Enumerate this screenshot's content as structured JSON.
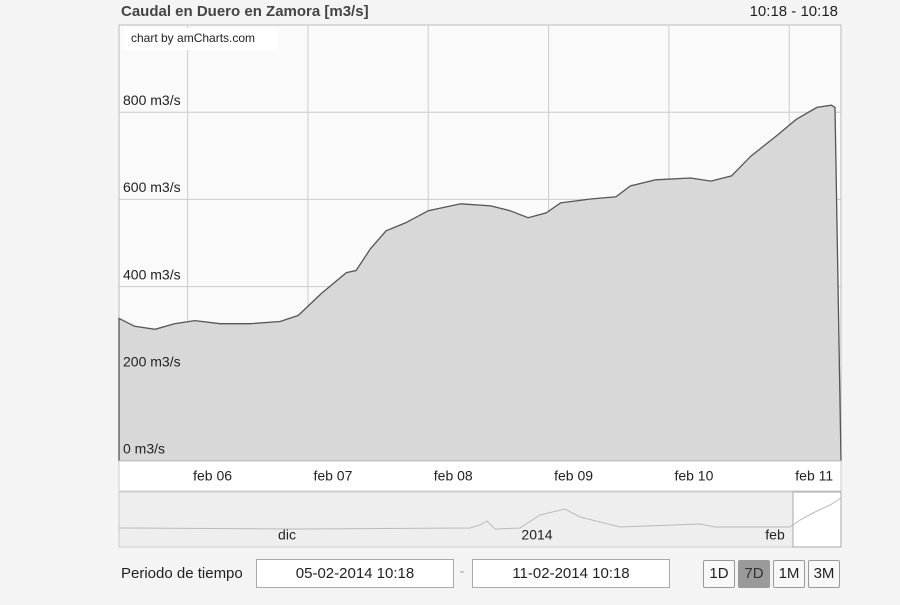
{
  "chart_data": {
    "type": "line",
    "title": "Caudal en Duero en Zamora  [m3/s]",
    "time_range": "10:18 - 10:18",
    "credit": "chart by amCharts.com",
    "x": [
      5.43,
      5.56,
      5.73,
      5.89,
      6.06,
      6.27,
      6.52,
      6.77,
      6.92,
      7.11,
      7.32,
      7.4,
      7.52,
      7.65,
      7.81,
      8.0,
      8.27,
      8.52,
      8.68,
      8.83,
      8.98,
      9.1,
      9.35,
      9.56,
      9.68,
      9.89,
      10.18,
      10.35,
      10.52,
      10.68,
      10.89,
      11.06,
      11.23,
      11.35,
      11.38,
      11.43
    ],
    "series": [
      {
        "color": "#555555",
        "fill": "#d8d8d8",
        "values": [
          327,
          309,
          302,
          315,
          322,
          315,
          315,
          320,
          334,
          384,
          432,
          437,
          487,
          528,
          546,
          574,
          590,
          585,
          574,
          558,
          569,
          592,
          601,
          606,
          631,
          645,
          649,
          642,
          654,
          699,
          745,
          784,
          811,
          816,
          811,
          0
        ]
      }
    ],
    "xlim": [
      5.43,
      11.43
    ],
    "xticks": [
      {
        "value": 6,
        "label": "feb 06"
      },
      {
        "value": 7,
        "label": "feb 07"
      },
      {
        "value": 8,
        "label": "feb 08"
      },
      {
        "value": 9,
        "label": "feb 09"
      },
      {
        "value": 10,
        "label": "feb 10"
      },
      {
        "value": 11,
        "label": "feb 11"
      }
    ],
    "ylim": [
      0,
      1000
    ],
    "yticks": [
      {
        "value": 0,
        "label": "0 m3/s"
      },
      {
        "value": 200,
        "label": "200 m3/s"
      },
      {
        "value": 400,
        "label": "400 m3/s"
      },
      {
        "value": 600,
        "label": "600 m3/s"
      },
      {
        "value": 800,
        "label": "800 m3/s"
      }
    ],
    "grid": true
  },
  "navigator": {
    "labels": [
      "dic",
      "2014",
      "feb"
    ]
  },
  "period": {
    "label": "Periodo de tiempo",
    "from": "05-02-2014 10:18",
    "separator": "-",
    "to": "11-02-2014 10:18"
  },
  "buttons": [
    "1D",
    "7D",
    "1M",
    "3M"
  ],
  "selected_button": "7D"
}
